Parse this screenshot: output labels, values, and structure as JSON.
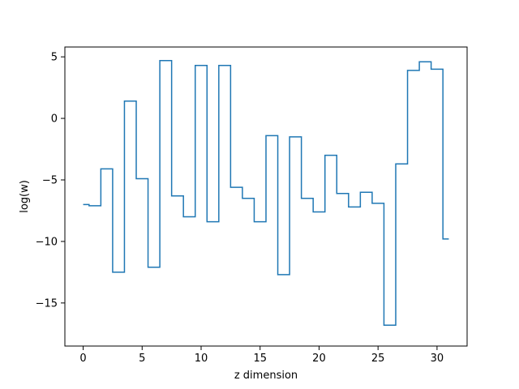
{
  "chart_data": {
    "type": "line",
    "drawstyle": "steps-mid",
    "title": "",
    "xlabel": "z dimension",
    "ylabel": "log(w)",
    "xlim": [
      -1.55,
      32.55
    ],
    "ylim": [
      -18.5,
      5.8
    ],
    "grid": false,
    "xticks": [
      0,
      5,
      10,
      15,
      20,
      25,
      30
    ],
    "xtick_labels": [
      "0",
      "5",
      "10",
      "15",
      "20",
      "25",
      "30"
    ],
    "yticks": [
      5,
      0,
      -5,
      -10,
      -15
    ],
    "ytick_labels": [
      "5",
      "0",
      "−5",
      "−10",
      "−15"
    ],
    "line_color": "#1f77b4",
    "series": [
      {
        "x": [
          0,
          1,
          2,
          3,
          4,
          5,
          6,
          7,
          8,
          9,
          10,
          11,
          12,
          13,
          14,
          15,
          16,
          17,
          18,
          19,
          20,
          21,
          22,
          23,
          24,
          25,
          26,
          27,
          28,
          29,
          30,
          31
        ],
        "values": [
          -7.0,
          -7.1,
          -4.1,
          -12.5,
          1.4,
          -4.9,
          -12.1,
          4.7,
          -6.3,
          -8.0,
          4.3,
          -8.4,
          4.3,
          -5.6,
          -6.5,
          -8.4,
          -1.4,
          -12.7,
          -1.5,
          -6.5,
          -7.6,
          -3.0,
          -6.1,
          -7.2,
          -6.0,
          -6.9,
          -16.8,
          -3.7,
          3.9,
          4.6,
          4.0,
          -9.8
        ]
      }
    ]
  }
}
